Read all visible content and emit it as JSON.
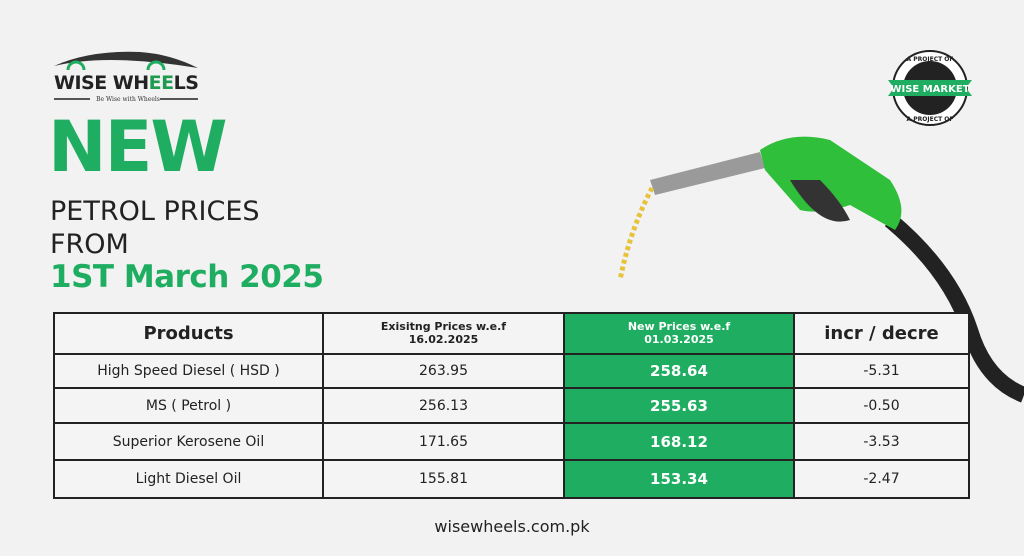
{
  "brand": {
    "name_a": "WISE WH",
    "name_b": "EE",
    "name_c": "LS",
    "tagline": "Be Wise with Wheels"
  },
  "badge": {
    "top": "A PROJECT OF",
    "center": "WISE MARKET",
    "bottom": "A PROJECT OF"
  },
  "headline": {
    "new": "NEW",
    "line1": "PETROL PRICES",
    "line2": "FROM",
    "date": "1ST March 2025"
  },
  "table": {
    "headers": {
      "product": "Products",
      "existing_l1": "Exisitng Prices w.e.f",
      "existing_l2": "16.02.2025",
      "new_l1": "New Prices w.e.f",
      "new_l2": "01.03.2025",
      "change": "incr / decre"
    },
    "rows": [
      {
        "product": "High Speed Diesel ( HSD )",
        "existing": "263.95",
        "new": "258.64",
        "change": "-5.31"
      },
      {
        "product": "MS ( Petrol )",
        "existing": "256.13",
        "new": "255.63",
        "change": "-0.50"
      },
      {
        "product": "Superior Kerosene Oil",
        "existing": "171.65",
        "new": "168.12",
        "change": "-3.53"
      },
      {
        "product": "Light Diesel Oil",
        "existing": "155.81",
        "new": "153.34",
        "change": "-2.47"
      }
    ]
  },
  "footer": {
    "url": "wisewheels.com.pk"
  },
  "colors": {
    "accent": "#1fae61",
    "text": "#222222",
    "background": "#f2f2f2"
  }
}
